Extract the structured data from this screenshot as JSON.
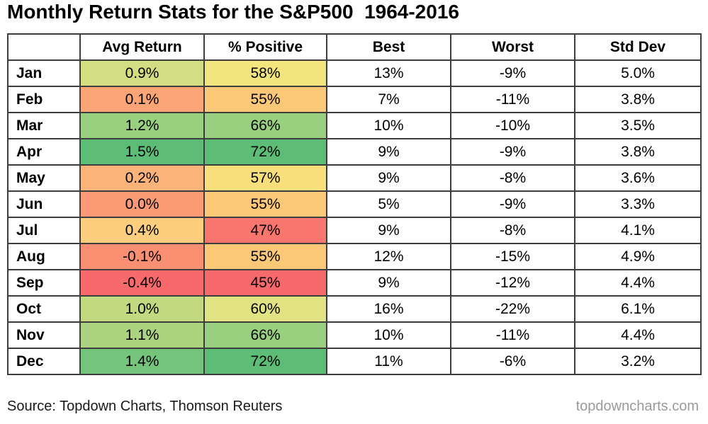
{
  "title": "Monthly Return Stats for the S&P500  1964-2016",
  "colors": {
    "border": "#3d3d3d",
    "title_text": "#000000",
    "source_text": "#1a1a1a",
    "watermark_text": "#9a9a9a",
    "heat_low": "#F8696B",
    "heat_mid": "#FFE784",
    "heat_high": "#5DBD76"
  },
  "table": {
    "headers": [
      "",
      "Avg Return",
      "% Positive",
      "Best",
      "Worst",
      "Std Dev"
    ],
    "rows": [
      {
        "month": "Jan",
        "avg_return": "0.9%",
        "avg_return_color": "#D2DE81",
        "pct_positive": "58%",
        "pct_positive_color": "#F3E57E",
        "best": "13%",
        "worst": "-9%",
        "std_dev": "5.0%"
      },
      {
        "month": "Feb",
        "avg_return": "0.1%",
        "avg_return_color": "#FBA577",
        "pct_positive": "55%",
        "pct_positive_color": "#FBC877",
        "best": "7%",
        "worst": "-11%",
        "std_dev": "3.8%"
      },
      {
        "month": "Mar",
        "avg_return": "1.2%",
        "avg_return_color": "#99D07F",
        "pct_positive": "66%",
        "pct_positive_color": "#99D07F",
        "best": "10%",
        "worst": "-10%",
        "std_dev": "3.5%"
      },
      {
        "month": "Apr",
        "avg_return": "1.5%",
        "avg_return_color": "#5DBD76",
        "pct_positive": "72%",
        "pct_positive_color": "#5DBD76",
        "best": "9%",
        "worst": "-9%",
        "std_dev": "3.8%"
      },
      {
        "month": "May",
        "avg_return": "0.2%",
        "avg_return_color": "#FCB379",
        "pct_positive": "57%",
        "pct_positive_color": "#F9DF7B",
        "best": "9%",
        "worst": "-8%",
        "std_dev": "3.6%"
      },
      {
        "month": "Jun",
        "avg_return": "0.0%",
        "avg_return_color": "#FA9B75",
        "pct_positive": "55%",
        "pct_positive_color": "#FBC877",
        "best": "5%",
        "worst": "-9%",
        "std_dev": "3.3%"
      },
      {
        "month": "Jul",
        "avg_return": "0.4%",
        "avg_return_color": "#FDCE7E",
        "pct_positive": "47%",
        "pct_positive_color": "#F9766F",
        "best": "9%",
        "worst": "-8%",
        "std_dev": "4.1%"
      },
      {
        "month": "Aug",
        "avg_return": "-0.1%",
        "avg_return_color": "#FA8F72",
        "pct_positive": "55%",
        "pct_positive_color": "#FBC877",
        "best": "12%",
        "worst": "-15%",
        "std_dev": "4.9%"
      },
      {
        "month": "Sep",
        "avg_return": "-0.4%",
        "avg_return_color": "#F8696B",
        "pct_positive": "45%",
        "pct_positive_color": "#F8696B",
        "best": "9%",
        "worst": "-12%",
        "std_dev": "4.4%"
      },
      {
        "month": "Oct",
        "avg_return": "1.0%",
        "avg_return_color": "#C2D980",
        "pct_positive": "60%",
        "pct_positive_color": "#E1E281",
        "best": "16%",
        "worst": "-22%",
        "std_dev": "6.1%"
      },
      {
        "month": "Nov",
        "avg_return": "1.1%",
        "avg_return_color": "#ACD37F",
        "pct_positive": "66%",
        "pct_positive_color": "#99D07F",
        "best": "10%",
        "worst": "-11%",
        "std_dev": "4.4%"
      },
      {
        "month": "Dec",
        "avg_return": "1.4%",
        "avg_return_color": "#75C47C",
        "pct_positive": "72%",
        "pct_positive_color": "#5DBD76",
        "best": "11%",
        "worst": "-6%",
        "std_dev": "3.2%"
      }
    ]
  },
  "footer": {
    "source": "Source: Topdown Charts, Thomson Reuters",
    "watermark": "topdowncharts.com"
  },
  "chart_data": {
    "type": "table",
    "title": "Monthly Return Stats for the S&P500 1964-2016",
    "categories": [
      "Jan",
      "Feb",
      "Mar",
      "Apr",
      "May",
      "Jun",
      "Jul",
      "Aug",
      "Sep",
      "Oct",
      "Nov",
      "Dec"
    ],
    "series": [
      {
        "name": "Avg Return",
        "unit": "%",
        "values": [
          0.9,
          0.1,
          1.2,
          1.5,
          0.2,
          0.0,
          0.4,
          -0.1,
          -0.4,
          1.0,
          1.1,
          1.4
        ]
      },
      {
        "name": "% Positive",
        "unit": "%",
        "values": [
          58,
          55,
          66,
          72,
          57,
          55,
          47,
          55,
          45,
          60,
          66,
          72
        ]
      },
      {
        "name": "Best",
        "unit": "%",
        "values": [
          13,
          7,
          10,
          9,
          9,
          5,
          9,
          12,
          9,
          16,
          10,
          11
        ]
      },
      {
        "name": "Worst",
        "unit": "%",
        "values": [
          -9,
          -11,
          -10,
          -9,
          -8,
          -9,
          -8,
          -15,
          -12,
          -22,
          -11,
          -6
        ]
      },
      {
        "name": "Std Dev",
        "unit": "%",
        "values": [
          5.0,
          3.8,
          3.5,
          3.8,
          3.6,
          3.3,
          4.1,
          4.9,
          4.4,
          6.1,
          4.4,
          3.2
        ]
      }
    ],
    "heatmap_columns": [
      "Avg Return",
      "% Positive"
    ],
    "heatmap_scale": {
      "low": "#F8696B",
      "mid": "#FFE784",
      "high": "#5DBD76"
    },
    "legend_position": "none",
    "grid": "table-borders"
  }
}
